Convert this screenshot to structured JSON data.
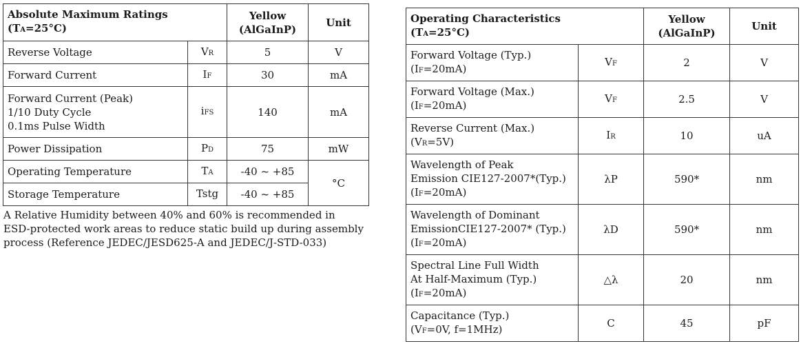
{
  "absolute_max": {
    "title": "Absolute Maximum Ratings",
    "condition_pre": "(T",
    "condition_sub": "A",
    "condition_post": "=25°C)",
    "col_color": "Yellow",
    "col_material": "(AlGaInP)",
    "col_unit": "Unit",
    "rows": [
      {
        "param": "Reverse Voltage",
        "sym": "V",
        "sub": "R",
        "value": "5",
        "unit": "V"
      },
      {
        "param": "Forward Current",
        "sym": "I",
        "sub": "F",
        "value": "30",
        "unit": "mA"
      },
      {
        "param": "Forward Current (Peak)\n1/10 Duty Cycle\n0.1ms Pulse Width",
        "sym": "i",
        "sub": "FS",
        "value": "140",
        "unit": "mA"
      },
      {
        "param": "Power Dissipation",
        "sym": "P",
        "sub": "D",
        "value": "75",
        "unit": "mW"
      },
      {
        "param": "Operating Temperature",
        "sym": "T",
        "sub": "A",
        "value": "-40 ~ +85",
        "unit": "°C"
      },
      {
        "param": "Storage Temperature",
        "sym": "Tstg",
        "sub": "",
        "value": "-40 ~ +85",
        "unit": ""
      }
    ]
  },
  "note": "A Relative Humidity between 40% and 60% is recommended in\nESD-protected work areas to reduce static build up during assembly\nprocess (Reference JEDEC/JESD625-A and JEDEC/J-STD-033)",
  "operating": {
    "title": "Operating Characteristics",
    "condition_pre": "(T",
    "condition_sub": "A",
    "condition_post": "=25°C)",
    "col_color": "Yellow",
    "col_material": "(AlGaInP)",
    "col_unit": "Unit",
    "rows": [
      {
        "l1": "Forward Voltage (Typ.)",
        "l2": "",
        "c_pre": "(I",
        "c_sub": "F",
        "c_post": "=20mA)",
        "sym": "V",
        "sub": "F",
        "value": "2",
        "unit": "V"
      },
      {
        "l1": "Forward Voltage (Max.)",
        "l2": "",
        "c_pre": "(I",
        "c_sub": "F",
        "c_post": "=20mA)",
        "sym": "V",
        "sub": "F",
        "value": "2.5",
        "unit": "V"
      },
      {
        "l1": "Reverse Current (Max.)",
        "l2": "",
        "c_pre": "(V",
        "c_sub": "R",
        "c_post": "=5V)",
        "sym": "I",
        "sub": "R",
        "value": "10",
        "unit": "uA"
      },
      {
        "l1": "Wavelength of Peak",
        "l2": "Emission CIE127-2007*(Typ.)",
        "c_pre": "(I",
        "c_sub": "F",
        "c_post": "=20mA)",
        "sym": "λP",
        "sub": "",
        "value": "590*",
        "unit": "nm"
      },
      {
        "l1": "Wavelength of Dominant",
        "l2": "EmissionCIE127-2007* (Typ.)",
        "c_pre": "(I",
        "c_sub": "F",
        "c_post": "=20mA)",
        "sym": "λD",
        "sub": "",
        "value": "590*",
        "unit": "nm"
      },
      {
        "l1": "Spectral Line Full Width",
        "l2": "At Half-Maximum (Typ.)",
        "c_pre": "(I",
        "c_sub": "F",
        "c_post": "=20mA)",
        "sym": "△λ",
        "sub": "",
        "value": "20",
        "unit": "nm"
      },
      {
        "l1": "Capacitance (Typ.)",
        "l2": "",
        "c_pre": "(V",
        "c_sub": "F",
        "c_post": "=0V, f=1MHz)",
        "sym": "C",
        "sub": "",
        "value": "45",
        "unit": "pF"
      }
    ]
  }
}
